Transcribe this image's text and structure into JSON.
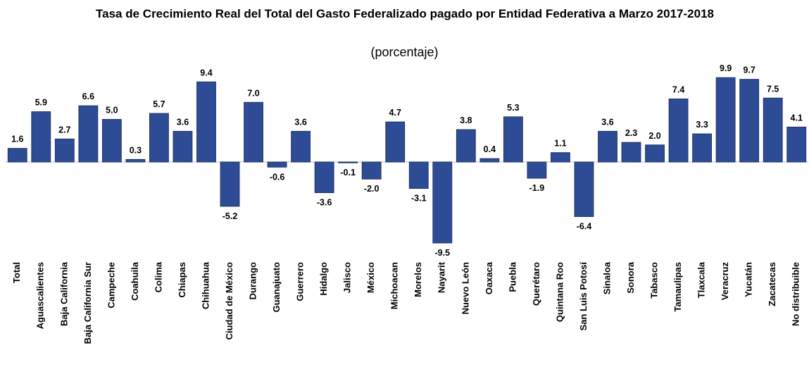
{
  "chart_data": {
    "type": "bar",
    "title": "Tasa de Crecimiento Real del Total del Gasto Federalizado pagado por Entidad Federativa a Marzo 2017-2018",
    "subtitle": "(porcentaje)",
    "categories": [
      "Total",
      "Aguascalientes",
      "Baja California",
      "Baja California Sur",
      "Campeche",
      "Coahuila",
      "Colima",
      "Chiapas",
      "Chihuahua",
      "Ciudad de México",
      "Durango",
      "Guanajuato",
      "Guerrero",
      "Hidalgo",
      "Jalisco",
      "México",
      "Michoacan",
      "Morelos",
      "Nayarit",
      "Nuevo León",
      "Oaxaca",
      "Puebla",
      "Querétaro",
      "Quintana Roo",
      "San Luis Potosí",
      "Sinaloa",
      "Sonora",
      "Tabasco",
      "Tamaulipas",
      "Tlaxcala",
      "Veracruz",
      "Yucatán",
      "Zacatecas",
      "No distribuible"
    ],
    "values": [
      1.6,
      5.9,
      2.7,
      6.6,
      5.0,
      0.3,
      5.7,
      3.6,
      9.4,
      -5.2,
      7.0,
      -0.6,
      3.6,
      -3.6,
      -0.1,
      -2.0,
      4.7,
      -3.1,
      -9.5,
      3.8,
      0.4,
      5.3,
      -1.9,
      1.1,
      -6.4,
      3.6,
      2.3,
      2.0,
      7.4,
      3.3,
      9.9,
      9.7,
      7.5,
      4.1
    ],
    "value_labels": [
      "1.6",
      "5.9",
      "2.7",
      "6.6",
      "5.0",
      "0.3",
      "5.7",
      "3.6",
      "9.4",
      "-5.2",
      "7.0",
      "-0.6",
      "3.6",
      "-3.6",
      "-0.1",
      "-2.0",
      "4.7",
      "-3.1",
      "-9.5",
      "3.8",
      "0.4",
      "5.3",
      "-1.9",
      "1.1",
      "-6.4",
      "3.6",
      "2.3",
      "2.0",
      "7.4",
      "3.3",
      "9.9",
      "9.7",
      "7.5",
      "4.1"
    ],
    "color": "#2e4c96"
  }
}
